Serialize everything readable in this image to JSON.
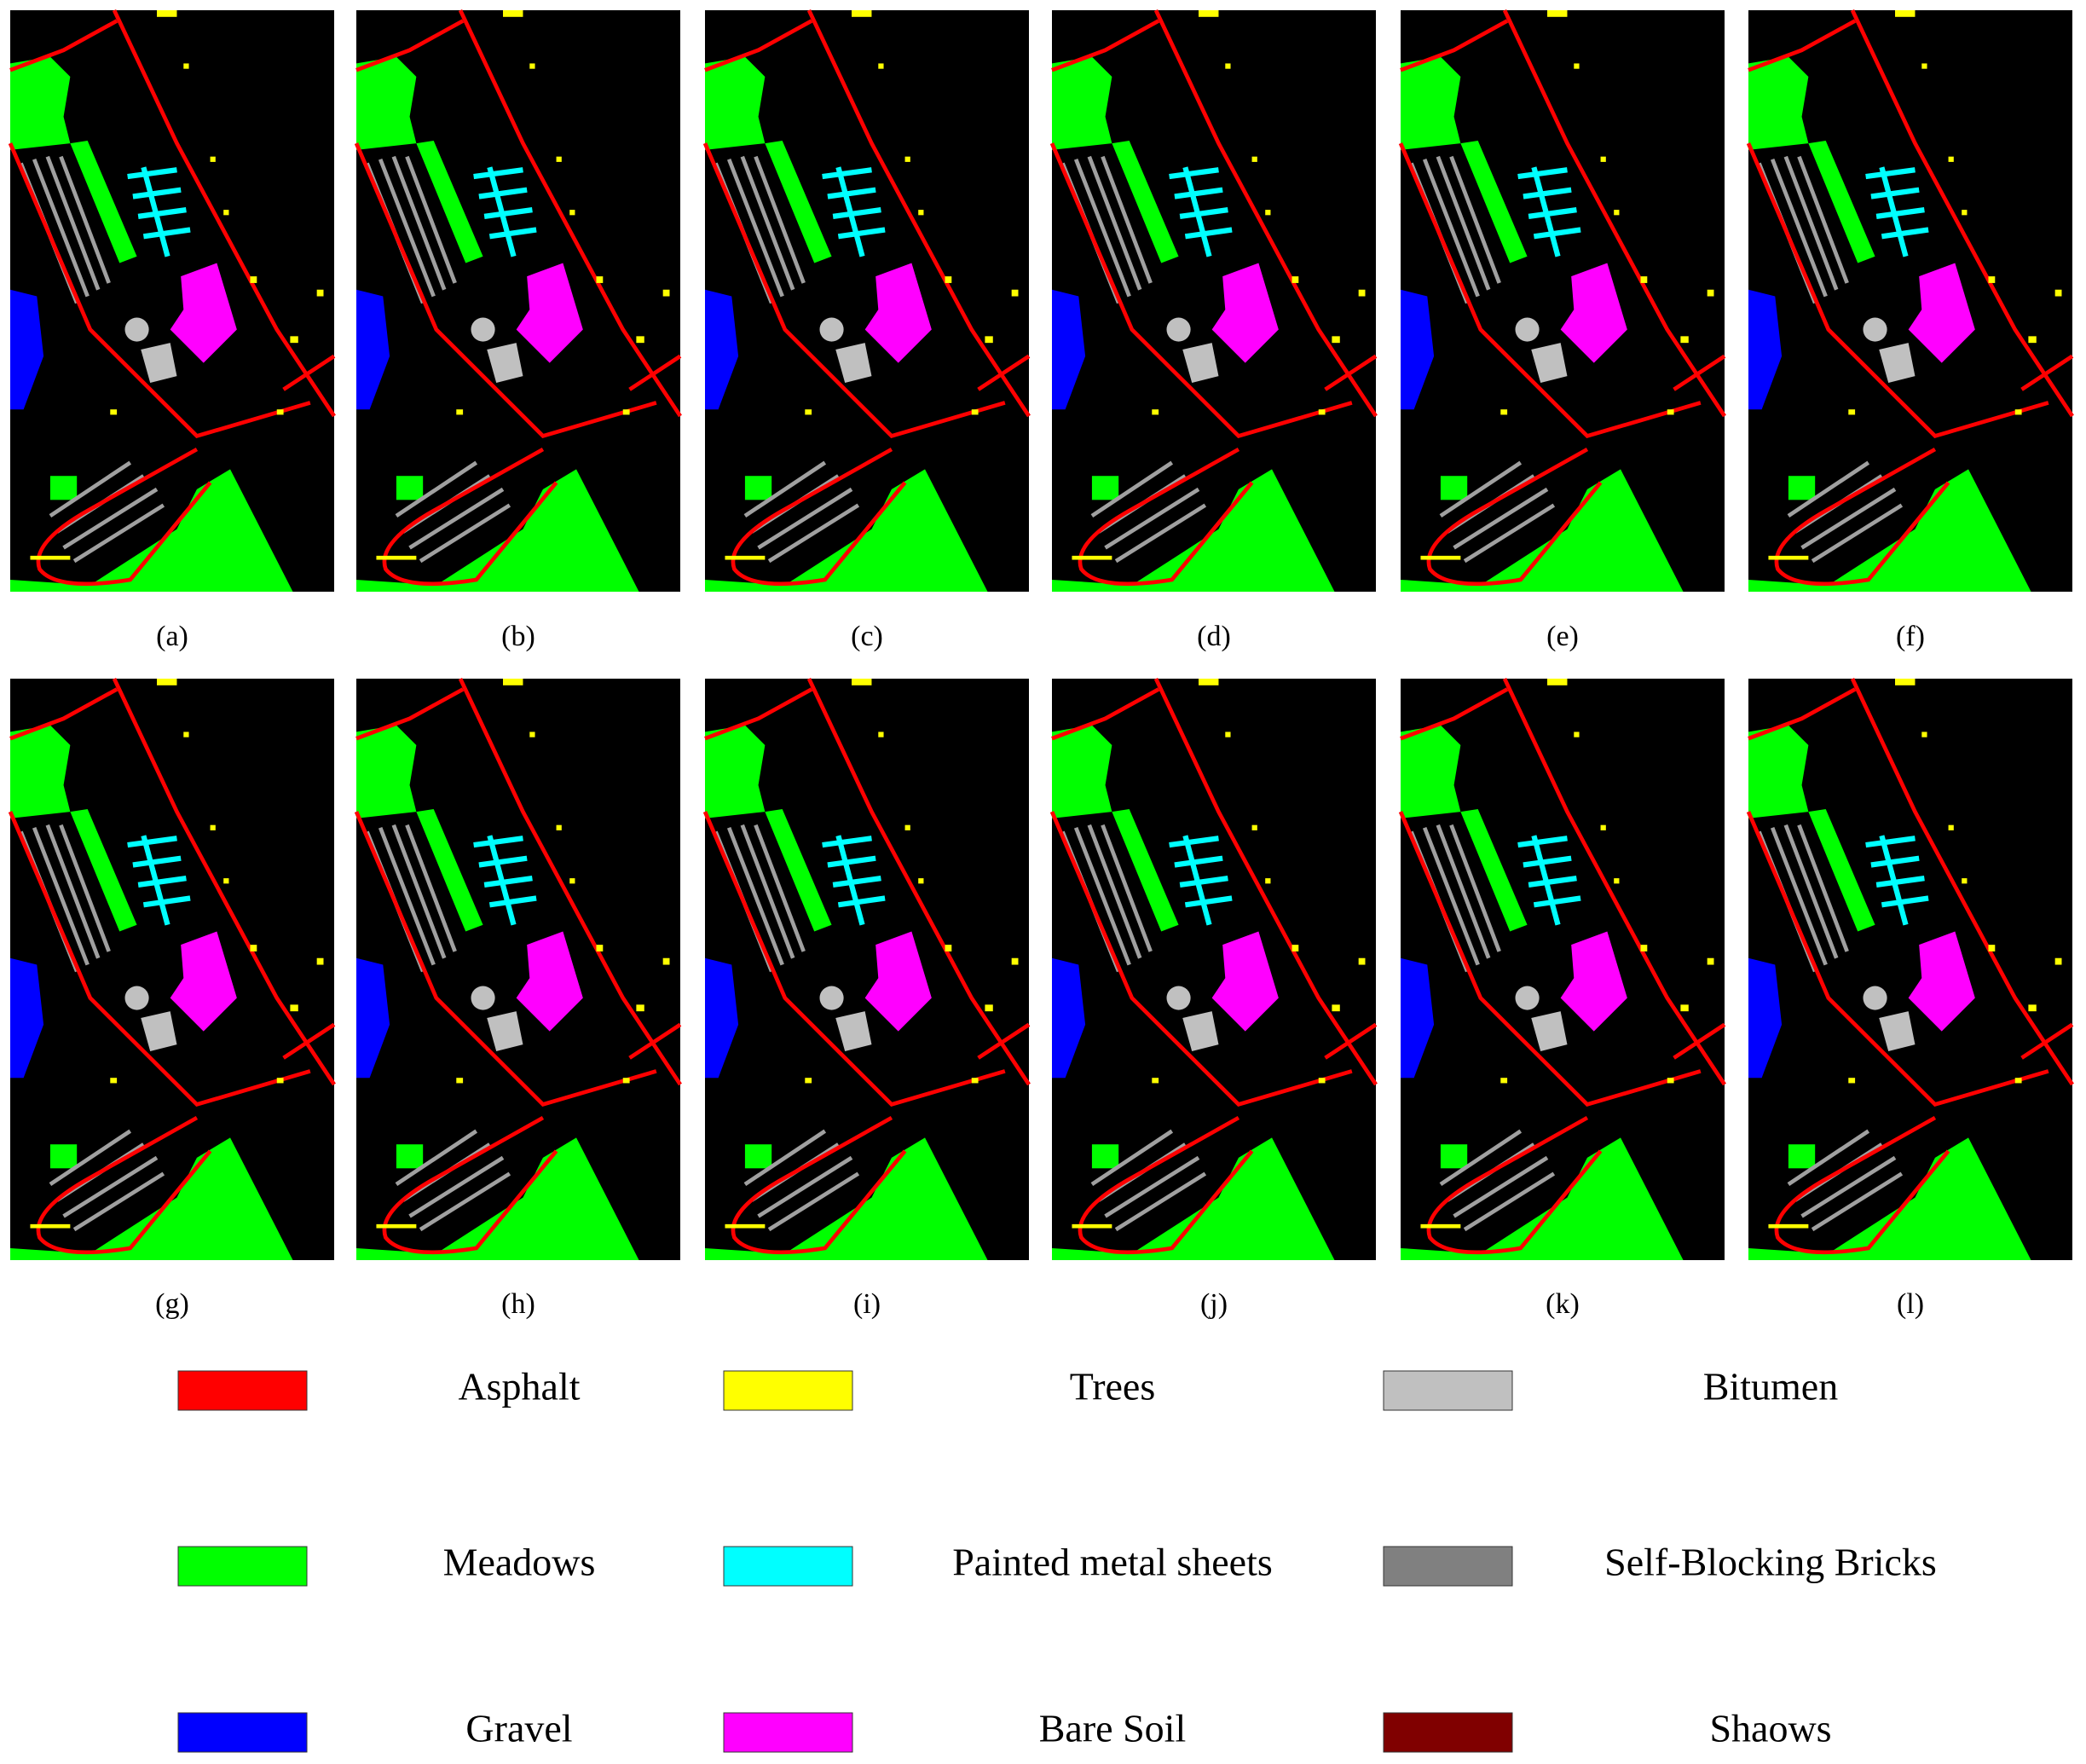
{
  "panels": [
    {
      "label": "(a)"
    },
    {
      "label": "(b)"
    },
    {
      "label": "(c)"
    },
    {
      "label": "(d)"
    },
    {
      "label": "(e)"
    },
    {
      "label": "(f)"
    },
    {
      "label": "(g)"
    },
    {
      "label": "(h)"
    },
    {
      "label": "(i)"
    },
    {
      "label": "(j)"
    },
    {
      "label": "(k)"
    },
    {
      "label": "(l)"
    }
  ],
  "legend": [
    {
      "label": "Asphalt",
      "color": "#ff0000"
    },
    {
      "label": "Trees",
      "color": "#ffff00"
    },
    {
      "label": "Bitumen",
      "color": "#c0c0c0"
    },
    {
      "label": "Meadows",
      "color": "#00ff00"
    },
    {
      "label": "Painted metal sheets",
      "color": "#00ffff"
    },
    {
      "label": "Self-Blocking Bricks",
      "color": "#808080"
    },
    {
      "label": "Gravel",
      "color": "#0000ff"
    },
    {
      "label": "Bare Soil",
      "color": "#ff00ff"
    },
    {
      "label": "Shaows",
      "color": "#800000"
    }
  ]
}
